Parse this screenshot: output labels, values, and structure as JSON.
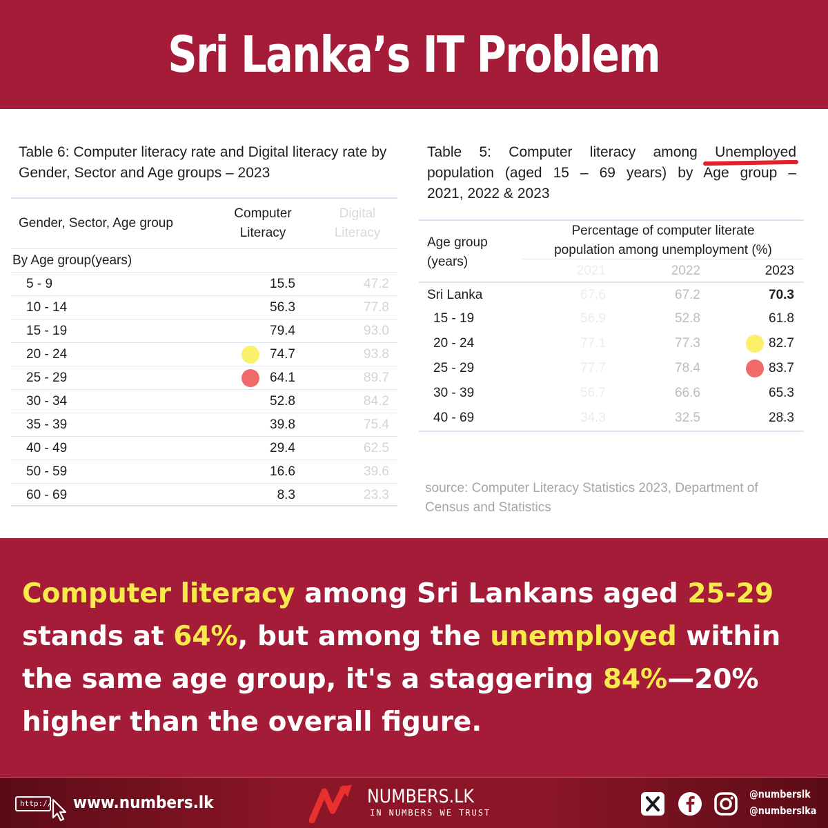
{
  "header": {
    "title": "Sri Lanka’s IT Problem"
  },
  "table6": {
    "caption": "Table 6: Computer literacy rate and Digital literacy rate by Gender, Sector and Age groups – 2023",
    "col_group": "Gender, Sector, Age group",
    "col_computer_1": "Computer",
    "col_computer_2": "Literacy",
    "col_digital_1": "Digital",
    "col_digital_2": "Literacy",
    "section": "By Age group(years)",
    "rows": [
      {
        "age": "5 - 9",
        "computer": "15.5",
        "digital": "47.2"
      },
      {
        "age": "10 - 14",
        "computer": "56.3",
        "digital": "77.8"
      },
      {
        "age": "15 - 19",
        "computer": "79.4",
        "digital": "93.0"
      },
      {
        "age": "20 - 24",
        "computer": "74.7",
        "digital": "93.8"
      },
      {
        "age": "25 - 29",
        "computer": "64.1",
        "digital": "89.7"
      },
      {
        "age": "30 - 34",
        "computer": "52.8",
        "digital": "84.2"
      },
      {
        "age": "35 - 39",
        "computer": "39.8",
        "digital": "75.4"
      },
      {
        "age": "40 - 49",
        "computer": "29.4",
        "digital": "62.5"
      },
      {
        "age": "50 - 59",
        "computer": "16.6",
        "digital": "39.6"
      },
      {
        "age": "60 - 69",
        "computer": "8.3",
        "digital": "23.3"
      }
    ]
  },
  "table5": {
    "caption_line1": "Table 5: Computer literacy among Unemployed",
    "caption_line2": "population (aged 15 – 69 years) by Age group –",
    "caption_line3": "2021, 2022 & 2023",
    "col_group_1": "Age group",
    "col_group_2": "(years)",
    "col_pct_1": "Percentage of computer literate",
    "col_pct_2": "population among unemployment (%)",
    "years": [
      "2021",
      "2022",
      "2023"
    ],
    "rows": [
      {
        "label": "Sri Lanka",
        "y2021": "67.6",
        "y2022": "67.2",
        "y2023": "70.3"
      },
      {
        "label": "15 - 19",
        "y2021": "56.9",
        "y2022": "52.8",
        "y2023": "61.8"
      },
      {
        "label": "20 - 24",
        "y2021": "77.1",
        "y2022": "77.3",
        "y2023": "82.7"
      },
      {
        "label": "25 - 29",
        "y2021": "77.7",
        "y2022": "78.4",
        "y2023": "83.7"
      },
      {
        "label": "30 - 39",
        "y2021": "56.7",
        "y2022": "66.6",
        "y2023": "65.3"
      },
      {
        "label": "40 - 69",
        "y2021": "34.3",
        "y2022": "32.5",
        "y2023": "28.3"
      }
    ]
  },
  "source": "source: Computer Literacy Statistics 2023, Department of Census and Statistics",
  "statement": {
    "p1": "Computer literacy",
    "p2": " among Sri Lankans aged ",
    "p3": "25-29",
    "p4": " stands at ",
    "p5": "64%",
    "p6": ", but among the ",
    "p7": "unemployed",
    "p8": " within the same age group, it's a staggering ",
    "p9": "84%",
    "p10": "—20% higher than the overall figure."
  },
  "footer": {
    "http_label": "http://",
    "website": "www.numbers.lk",
    "brand": "NUMBERS.LK",
    "tagline": "IN NUMBERS WE TRUST",
    "handle_1": "@numberslk",
    "handle_2": "@numberslka",
    "icons": [
      "x-icon",
      "facebook-icon",
      "instagram-icon",
      "cursor-icon"
    ]
  },
  "colors": {
    "brand_red": "#a51c38",
    "highlight_yellow": "#f7ea4a",
    "dot_yellow": "#faf06a",
    "dot_red": "#f16a6a",
    "underline_red": "#e0202a"
  }
}
